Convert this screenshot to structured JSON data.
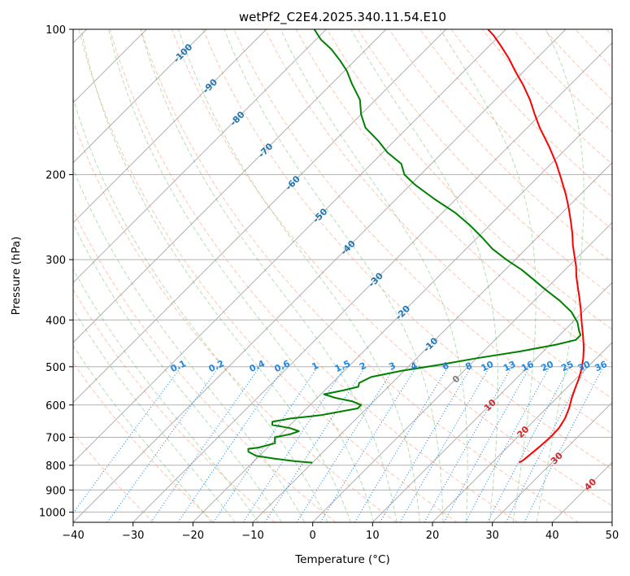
{
  "chart_data": {
    "type": "line",
    "title": "wetPf2_C2E4.2025.340.11.54.E10",
    "xlabel": "Temperature (°C)",
    "ylabel": "Pressure (hPa)",
    "xlim": [
      -40,
      50
    ],
    "ylim": [
      1050,
      100
    ],
    "y_scale": "log",
    "x_ticks": [
      "-40",
      "-30",
      "-20",
      "-10",
      "0",
      "10",
      "20",
      "30",
      "40",
      "50"
    ],
    "y_ticks": [
      "100",
      "200",
      "300",
      "400",
      "500",
      "600",
      "700",
      "800",
      "900",
      "1000"
    ],
    "grid": true,
    "skew": "skew-T log-P",
    "colors": {
      "temperature": "#ff0000",
      "dewpoint": "#008000",
      "dry_adiabat": "#ff7f50",
      "moist_adiabat": "#2ca02c",
      "mixing_ratio": "#1e88e5",
      "isotherm_label_cold": "#1f77b4",
      "isotherm_label_warm": "#d62728",
      "isotherm_label_zero": "#7f7f7f"
    },
    "series": [
      {
        "key": "temperature",
        "p": [
          790,
          780,
          760,
          730,
          700,
          670,
          640,
          610,
          580,
          555,
          530,
          505,
          480,
          455,
          430,
          405,
          380,
          360,
          340,
          325,
          310,
          295,
          280,
          265,
          250,
          235,
          220,
          205,
          190,
          175,
          160,
          150,
          140,
          130,
          122,
          115,
          108,
          103,
          100
        ],
        "t": [
          24.5,
          24.8,
          25.0,
          25.3,
          25.5,
          25.4,
          24.8,
          23.8,
          22.5,
          21.5,
          20.5,
          19.3,
          17.8,
          16.0,
          13.9,
          11.6,
          9.2,
          7.1,
          4.8,
          3.0,
          1.3,
          -0.7,
          -2.8,
          -4.8,
          -7.1,
          -9.6,
          -12.4,
          -15.6,
          -19.1,
          -23.2,
          -27.9,
          -31.0,
          -34.2,
          -38.0,
          -41.5,
          -44.6,
          -48.2,
          -51.0,
          -53.0
        ]
      },
      {
        "key": "dewpoint",
        "p": [
          790,
          785,
          775,
          765,
          750,
          740,
          735,
          720,
          700,
          690,
          680,
          670,
          660,
          650,
          640,
          630,
          610,
          600,
          590,
          580,
          570,
          560,
          550,
          540,
          525,
          510,
          495,
          480,
          465,
          450,
          440,
          430,
          420,
          405,
          385,
          365,
          345,
          330,
          315,
          300,
          285,
          270,
          255,
          240,
          225,
          210,
          200,
          190,
          180,
          170,
          160,
          150,
          140,
          130,
          122,
          116,
          110,
          105,
          100
        ],
        "t": [
          -10.0,
          -13.0,
          -17.0,
          -20.5,
          -22.5,
          -23.0,
          -21.5,
          -19.5,
          -20.5,
          -18.5,
          -17.5,
          -19.5,
          -23.0,
          -23.5,
          -21.0,
          -16.5,
          -11.5,
          -11.5,
          -13.5,
          -17.0,
          -19.5,
          -17.0,
          -15.0,
          -15.5,
          -14.5,
          -10.5,
          -5.0,
          0.0,
          6.0,
          11.0,
          13.5,
          13.5,
          12.4,
          10.9,
          8.1,
          4.3,
          -0.2,
          -3.6,
          -7.2,
          -11.5,
          -15.6,
          -19.2,
          -23.2,
          -27.8,
          -33.5,
          -39.2,
          -42.7,
          -45.0,
          -49.2,
          -52.8,
          -57.0,
          -60.0,
          -62.6,
          -66.5,
          -69.6,
          -72.5,
          -75.8,
          -79.2,
          -82.0
        ]
      }
    ],
    "isotherm_labels": {
      "cold": [
        "-100",
        "-90",
        "-80",
        "-70",
        "-60",
        "-50",
        "-40",
        "-30",
        "-20",
        "-10"
      ],
      "zero": [
        "0"
      ],
      "warm": [
        "10",
        "20",
        "30",
        "40"
      ]
    },
    "mixing_ratio_labels": [
      "0.1",
      "0.2",
      "0.4",
      "0.6",
      "1",
      "1.5",
      "2",
      "3",
      "4",
      "6",
      "8",
      "10",
      "13",
      "16",
      "20",
      "25",
      "30",
      "36"
    ]
  }
}
